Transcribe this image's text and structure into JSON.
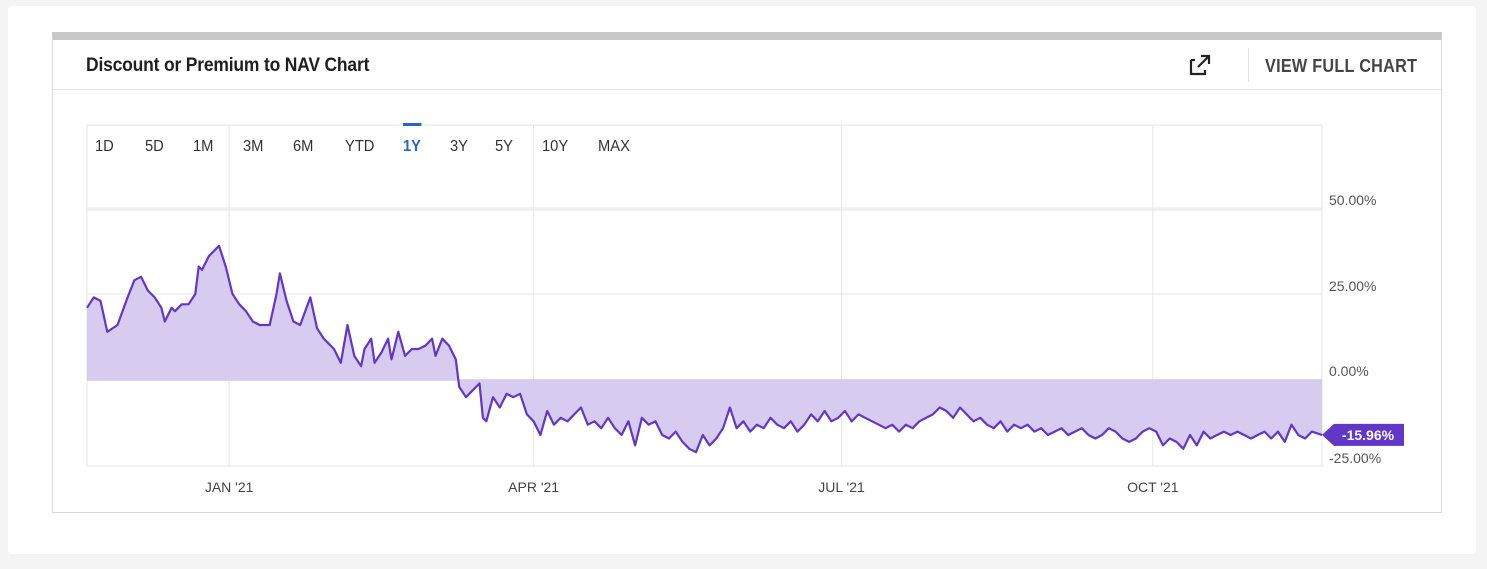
{
  "header": {
    "title": "Discount or Premium to NAV Chart",
    "view_full_chart": "VIEW FULL CHART",
    "external_icon": "external-link-icon"
  },
  "range_tabs": [
    "1D",
    "5D",
    "1M",
    "3M",
    "6M",
    "YTD",
    "1Y",
    "3Y",
    "5Y",
    "10Y",
    "MAX"
  ],
  "active_range": "1Y",
  "colors": {
    "line": "#6236c9",
    "fill": "#d5c9ee",
    "badge": "#6236c9",
    "active_tab": "#2a63c9",
    "grid": "#e6e6e6"
  },
  "chart_data": {
    "type": "area",
    "title": "Discount or Premium to NAV Chart",
    "xlabel": "",
    "ylabel": "",
    "ylim": [
      -25,
      60
    ],
    "y_ticks": [
      {
        "value": 50,
        "label": "50.00%"
      },
      {
        "value": 25,
        "label": "25.00%"
      },
      {
        "value": 0,
        "label": "0.00%"
      },
      {
        "value": -25,
        "label": "-25.00%"
      }
    ],
    "x_range": [
      "2020-11-20",
      "2021-11-20"
    ],
    "x_ticks": [
      {
        "date": "2021-01-01",
        "label": "JAN '21"
      },
      {
        "date": "2021-04-01",
        "label": "APR '21"
      },
      {
        "date": "2021-07-01",
        "label": "JUL '21"
      },
      {
        "date": "2021-10-01",
        "label": "OCT '21"
      }
    ],
    "grid": true,
    "last_value_label": "-15.96%",
    "series": [
      {
        "values": [
          [
            "2020-11-20",
            21
          ],
          [
            "2020-11-22",
            24
          ],
          [
            "2020-11-24",
            23
          ],
          [
            "2020-11-26",
            14
          ],
          [
            "2020-11-29",
            16
          ],
          [
            "2020-12-02",
            24
          ],
          [
            "2020-12-04",
            29
          ],
          [
            "2020-12-06",
            30
          ],
          [
            "2020-12-08",
            26
          ],
          [
            "2020-12-10",
            24
          ],
          [
            "2020-12-12",
            21
          ],
          [
            "2020-12-13",
            17
          ],
          [
            "2020-12-15",
            21
          ],
          [
            "2020-12-16",
            20
          ],
          [
            "2020-12-18",
            22
          ],
          [
            "2020-12-20",
            22
          ],
          [
            "2020-12-22",
            25
          ],
          [
            "2020-12-23",
            33
          ],
          [
            "2020-12-24",
            32
          ],
          [
            "2020-12-26",
            36
          ],
          [
            "2020-12-28",
            38
          ],
          [
            "2020-12-29",
            39
          ],
          [
            "2020-12-31",
            33
          ],
          [
            "2021-01-02",
            25
          ],
          [
            "2021-01-04",
            22
          ],
          [
            "2021-01-06",
            20
          ],
          [
            "2021-01-08",
            17
          ],
          [
            "2021-01-10",
            16
          ],
          [
            "2021-01-12",
            16
          ],
          [
            "2021-01-13",
            16
          ],
          [
            "2021-01-15",
            25
          ],
          [
            "2021-01-16",
            31
          ],
          [
            "2021-01-18",
            23
          ],
          [
            "2021-01-20",
            17
          ],
          [
            "2021-01-22",
            16
          ],
          [
            "2021-01-25",
            24
          ],
          [
            "2021-01-27",
            15
          ],
          [
            "2021-01-29",
            12
          ],
          [
            "2021-02-01",
            9
          ],
          [
            "2021-02-03",
            5
          ],
          [
            "2021-02-05",
            16
          ],
          [
            "2021-02-07",
            7
          ],
          [
            "2021-02-09",
            4
          ],
          [
            "2021-02-10",
            9
          ],
          [
            "2021-02-12",
            12
          ],
          [
            "2021-02-13",
            5
          ],
          [
            "2021-02-15",
            8
          ],
          [
            "2021-02-17",
            12
          ],
          [
            "2021-02-18",
            6
          ],
          [
            "2021-02-20",
            14
          ],
          [
            "2021-02-22",
            7
          ],
          [
            "2021-02-24",
            9
          ],
          [
            "2021-02-26",
            9
          ],
          [
            "2021-02-28",
            10
          ],
          [
            "2021-03-02",
            12
          ],
          [
            "2021-03-03",
            7
          ],
          [
            "2021-03-05",
            12
          ],
          [
            "2021-03-07",
            10
          ],
          [
            "2021-03-09",
            6
          ],
          [
            "2021-03-10",
            -2
          ],
          [
            "2021-03-12",
            -5
          ],
          [
            "2021-03-14",
            -3
          ],
          [
            "2021-03-16",
            -1
          ],
          [
            "2021-03-17",
            -11
          ],
          [
            "2021-03-18",
            -12
          ],
          [
            "2021-03-20",
            -5
          ],
          [
            "2021-03-22",
            -8
          ],
          [
            "2021-03-24",
            -4
          ],
          [
            "2021-03-26",
            -5
          ],
          [
            "2021-03-28",
            -4
          ],
          [
            "2021-03-30",
            -10
          ],
          [
            "2021-04-01",
            -12
          ],
          [
            "2021-04-03",
            -16
          ],
          [
            "2021-04-05",
            -9
          ],
          [
            "2021-04-07",
            -13
          ],
          [
            "2021-04-09",
            -11
          ],
          [
            "2021-04-11",
            -12
          ],
          [
            "2021-04-13",
            -10
          ],
          [
            "2021-04-15",
            -8
          ],
          [
            "2021-04-17",
            -13
          ],
          [
            "2021-04-19",
            -12
          ],
          [
            "2021-04-21",
            -14
          ],
          [
            "2021-04-23",
            -11
          ],
          [
            "2021-04-25",
            -14
          ],
          [
            "2021-04-27",
            -16
          ],
          [
            "2021-04-29",
            -12
          ],
          [
            "2021-05-01",
            -19
          ],
          [
            "2021-05-03",
            -11
          ],
          [
            "2021-05-05",
            -13
          ],
          [
            "2021-05-07",
            -12
          ],
          [
            "2021-05-09",
            -16
          ],
          [
            "2021-05-11",
            -17
          ],
          [
            "2021-05-13",
            -15
          ],
          [
            "2021-05-15",
            -18
          ],
          [
            "2021-05-17",
            -20
          ],
          [
            "2021-05-19",
            -21
          ],
          [
            "2021-05-21",
            -16
          ],
          [
            "2021-05-23",
            -19
          ],
          [
            "2021-05-25",
            -17
          ],
          [
            "2021-05-27",
            -14
          ],
          [
            "2021-05-29",
            -8
          ],
          [
            "2021-05-31",
            -14
          ],
          [
            "2021-06-02",
            -12
          ],
          [
            "2021-06-04",
            -15
          ],
          [
            "2021-06-06",
            -13
          ],
          [
            "2021-06-08",
            -14
          ],
          [
            "2021-06-10",
            -11
          ],
          [
            "2021-06-12",
            -13
          ],
          [
            "2021-06-14",
            -14
          ],
          [
            "2021-06-16",
            -12
          ],
          [
            "2021-06-18",
            -15
          ],
          [
            "2021-06-20",
            -13
          ],
          [
            "2021-06-22",
            -10
          ],
          [
            "2021-06-24",
            -12
          ],
          [
            "2021-06-26",
            -9
          ],
          [
            "2021-06-28",
            -12
          ],
          [
            "2021-06-30",
            -11
          ],
          [
            "2021-07-02",
            -9
          ],
          [
            "2021-07-04",
            -12
          ],
          [
            "2021-07-06",
            -10
          ],
          [
            "2021-07-08",
            -11
          ],
          [
            "2021-07-10",
            -12
          ],
          [
            "2021-07-12",
            -13
          ],
          [
            "2021-07-14",
            -14
          ],
          [
            "2021-07-16",
            -13
          ],
          [
            "2021-07-18",
            -15
          ],
          [
            "2021-07-20",
            -13
          ],
          [
            "2021-07-22",
            -14
          ],
          [
            "2021-07-24",
            -12
          ],
          [
            "2021-07-26",
            -11
          ],
          [
            "2021-07-28",
            -10
          ],
          [
            "2021-07-30",
            -8
          ],
          [
            "2021-08-01",
            -9
          ],
          [
            "2021-08-03",
            -11
          ],
          [
            "2021-08-05",
            -8
          ],
          [
            "2021-08-07",
            -10
          ],
          [
            "2021-08-09",
            -12
          ],
          [
            "2021-08-11",
            -11
          ],
          [
            "2021-08-13",
            -13
          ],
          [
            "2021-08-15",
            -14
          ],
          [
            "2021-08-17",
            -12
          ],
          [
            "2021-08-19",
            -15
          ],
          [
            "2021-08-21",
            -13
          ],
          [
            "2021-08-23",
            -14
          ],
          [
            "2021-08-25",
            -13
          ],
          [
            "2021-08-27",
            -15
          ],
          [
            "2021-08-29",
            -14
          ],
          [
            "2021-08-31",
            -16
          ],
          [
            "2021-09-02",
            -15
          ],
          [
            "2021-09-04",
            -14
          ],
          [
            "2021-09-06",
            -16
          ],
          [
            "2021-09-08",
            -15
          ],
          [
            "2021-09-10",
            -14
          ],
          [
            "2021-09-12",
            -16
          ],
          [
            "2021-09-14",
            -17
          ],
          [
            "2021-09-16",
            -16
          ],
          [
            "2021-09-18",
            -14
          ],
          [
            "2021-09-20",
            -15
          ],
          [
            "2021-09-22",
            -17
          ],
          [
            "2021-09-24",
            -18
          ],
          [
            "2021-09-26",
            -17
          ],
          [
            "2021-09-28",
            -15
          ],
          [
            "2021-09-30",
            -14
          ],
          [
            "2021-10-02",
            -15
          ],
          [
            "2021-10-04",
            -19
          ],
          [
            "2021-10-06",
            -17
          ],
          [
            "2021-10-08",
            -18
          ],
          [
            "2021-10-10",
            -20
          ],
          [
            "2021-10-12",
            -16
          ],
          [
            "2021-10-14",
            -19
          ],
          [
            "2021-10-16",
            -15
          ],
          [
            "2021-10-18",
            -17
          ],
          [
            "2021-10-20",
            -16
          ],
          [
            "2021-10-22",
            -15
          ],
          [
            "2021-10-24",
            -16
          ],
          [
            "2021-10-26",
            -15
          ],
          [
            "2021-10-28",
            -16
          ],
          [
            "2021-10-30",
            -17
          ],
          [
            "2021-11-01",
            -16
          ],
          [
            "2021-11-03",
            -15
          ],
          [
            "2021-11-05",
            -17
          ],
          [
            "2021-11-07",
            -15
          ],
          [
            "2021-11-09",
            -18
          ],
          [
            "2021-11-11",
            -13
          ],
          [
            "2021-11-13",
            -16
          ],
          [
            "2021-11-15",
            -17
          ],
          [
            "2021-11-17",
            -15
          ],
          [
            "2021-11-20",
            -15.96
          ]
        ]
      }
    ]
  }
}
